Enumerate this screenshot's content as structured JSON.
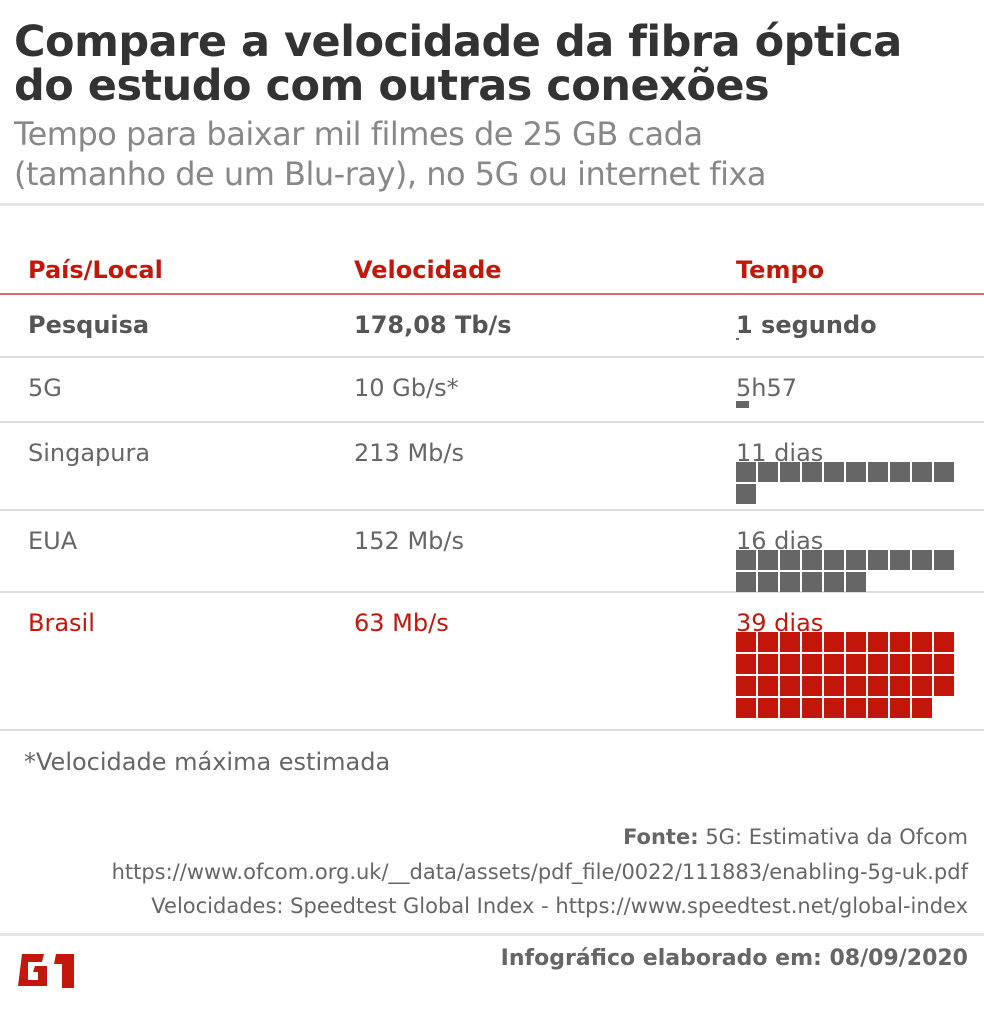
{
  "title": [
    "Compare a velocidade da fibra óptica",
    "do estudo com outras conexões"
  ],
  "subtitle": [
    "Tempo para baixar mil filmes de 25 GB cada",
    "(tamanho de um Blu-ray), no 5G ou internet fixa"
  ],
  "colors": {
    "accent": "#c4170c",
    "gray": "#666666"
  },
  "chart_data": {
    "type": "table",
    "columns": [
      "País/Local",
      "Velocidade",
      "Tempo"
    ],
    "rows": [
      {
        "place": "Pesquisa",
        "speed": "178,08 Tb/s",
        "time": "1 segundo",
        "days": 1.16e-05,
        "style": "bold"
      },
      {
        "place": "5G",
        "speed": "10 Gb/s*",
        "time": "5h57",
        "days": 0.248,
        "style": "normal"
      },
      {
        "place": "Singapura",
        "speed": "213 Mb/s",
        "time": "11 dias",
        "days": 11,
        "style": "normal"
      },
      {
        "place": "EUA",
        "speed": "152 Mb/s",
        "time": "16 dias",
        "days": 16,
        "style": "normal"
      },
      {
        "place": "Brasil",
        "speed": "63 Mb/s",
        "time": "39 dias",
        "days": 39,
        "style": "red"
      }
    ]
  },
  "note": "*Velocidade máxima estimada",
  "source": {
    "label": "Fonte:",
    "line1": "5G: Estimativa da Ofcom",
    "line2": "https://www.ofcom.org.uk/__data/assets/pdf_file/0022/111883/enabling-5g-uk.pdf",
    "line3": "Velocidades: Speedtest Global Index - https://www.speedtest.net/global-index"
  },
  "footer": {
    "logo": "G1",
    "date": "Infográfico elaborado em: 08/09/2020"
  }
}
